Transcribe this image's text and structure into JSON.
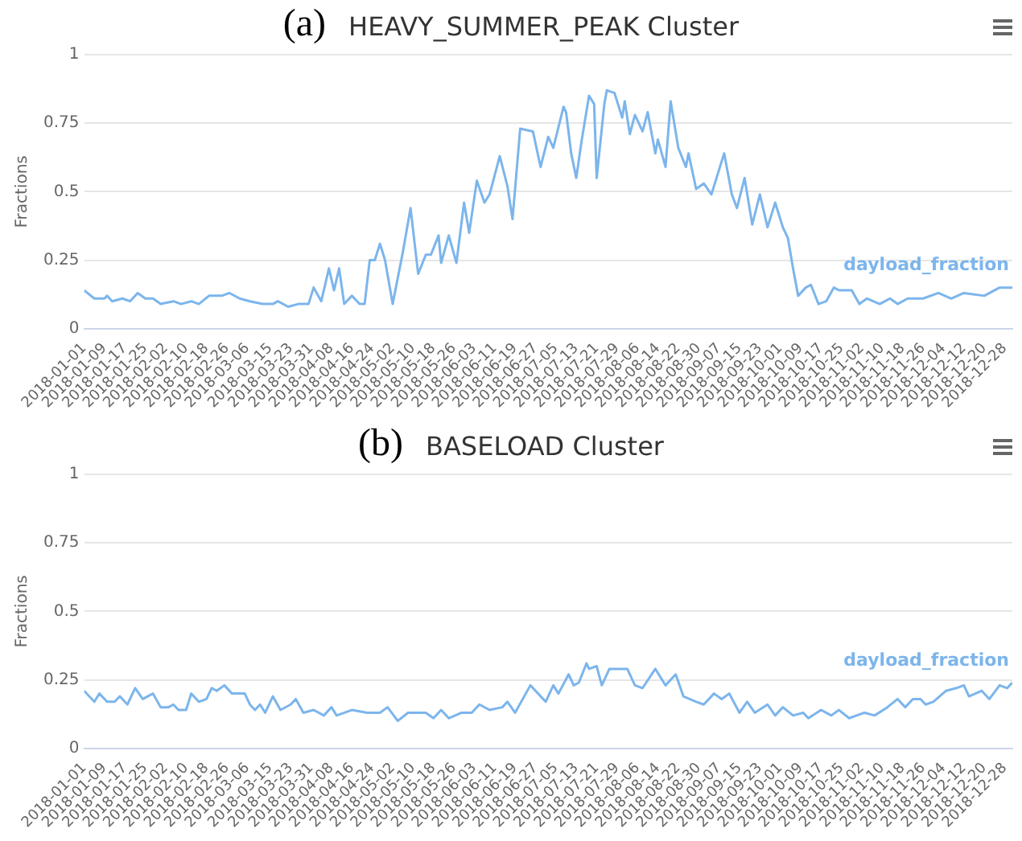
{
  "chart_data": [
    {
      "type": "line",
      "title": "(a) HEAVY_SUMMER_PEAK Cluster",
      "ylabel": "Fractions",
      "ylim": [
        0,
        1
      ],
      "yticks": [
        0,
        0.25,
        0.5,
        0.75,
        1
      ],
      "grid": "y",
      "legend": false,
      "marker": "none",
      "line_style": "solid",
      "xlim": [
        "2018-01-01",
        "2018-12-31"
      ],
      "xticks": [
        "2018-01-01",
        "2018-01-09",
        "2018-01-17",
        "2018-01-25",
        "2018-02-02",
        "2018-02-10",
        "2018-02-18",
        "2018-02-26",
        "2018-03-06",
        "2018-03-15",
        "2018-03-23",
        "2018-03-31",
        "2018-04-08",
        "2018-04-16",
        "2018-04-24",
        "2018-05-02",
        "2018-05-10",
        "2018-05-18",
        "2018-05-26",
        "2018-06-03",
        "2018-06-11",
        "2018-06-19",
        "2018-06-27",
        "2018-07-05",
        "2018-07-13",
        "2018-07-21",
        "2018-07-29",
        "2018-08-06",
        "2018-08-14",
        "2018-08-22",
        "2018-08-30",
        "2018-09-07",
        "2018-09-15",
        "2018-09-23",
        "2018-10-01",
        "2018-10-09",
        "2018-10-17",
        "2018-10-25",
        "2018-11-02",
        "2018-11-10",
        "2018-11-18",
        "2018-11-26",
        "2018-12-04",
        "2018-12-12",
        "2018-12-20",
        "2018-12-28"
      ],
      "series": [
        {
          "name": "dayload_fraction",
          "color": "#7cb5ec",
          "x": [
            "2018-01-01",
            "2018-01-05",
            "2018-01-09",
            "2018-01-10",
            "2018-01-12",
            "2018-01-16",
            "2018-01-19",
            "2018-01-22",
            "2018-01-25",
            "2018-01-28",
            "2018-01-31",
            "2018-02-05",
            "2018-02-08",
            "2018-02-12",
            "2018-02-15",
            "2018-02-19",
            "2018-02-24",
            "2018-02-27",
            "2018-03-03",
            "2018-03-07",
            "2018-03-12",
            "2018-03-16",
            "2018-03-18",
            "2018-03-22",
            "2018-03-26",
            "2018-03-30",
            "2018-04-01",
            "2018-04-04",
            "2018-04-07",
            "2018-04-09",
            "2018-04-11",
            "2018-04-13",
            "2018-04-16",
            "2018-04-19",
            "2018-04-21",
            "2018-04-23",
            "2018-04-25",
            "2018-04-27",
            "2018-04-29",
            "2018-05-02",
            "2018-05-06",
            "2018-05-09",
            "2018-05-12",
            "2018-05-15",
            "2018-05-17",
            "2018-05-20",
            "2018-05-21",
            "2018-05-24",
            "2018-05-27",
            "2018-05-30",
            "2018-06-01",
            "2018-06-04",
            "2018-06-07",
            "2018-06-09",
            "2018-06-13",
            "2018-06-16",
            "2018-06-18",
            "2018-06-21",
            "2018-06-26",
            "2018-06-29",
            "2018-07-02",
            "2018-07-04",
            "2018-07-08",
            "2018-07-09",
            "2018-07-11",
            "2018-07-13",
            "2018-07-15",
            "2018-07-18",
            "2018-07-20",
            "2018-07-21",
            "2018-07-24",
            "2018-07-25",
            "2018-07-28",
            "2018-07-31",
            "2018-08-01",
            "2018-08-03",
            "2018-08-05",
            "2018-08-08",
            "2018-08-10",
            "2018-08-13",
            "2018-08-14",
            "2018-08-17",
            "2018-08-19",
            "2018-08-22",
            "2018-08-25",
            "2018-08-26",
            "2018-08-29",
            "2018-09-01",
            "2018-09-04",
            "2018-09-09",
            "2018-09-12",
            "2018-09-14",
            "2018-09-17",
            "2018-09-20",
            "2018-09-23",
            "2018-09-26",
            "2018-09-29",
            "2018-10-02",
            "2018-10-04",
            "2018-10-06",
            "2018-10-08",
            "2018-10-11",
            "2018-10-13",
            "2018-10-16",
            "2018-10-19",
            "2018-10-22",
            "2018-10-24",
            "2018-10-29",
            "2018-11-01",
            "2018-11-04",
            "2018-11-09",
            "2018-11-13",
            "2018-11-16",
            "2018-11-20",
            "2018-11-26",
            "2018-12-02",
            "2018-12-07",
            "2018-12-12",
            "2018-12-20",
            "2018-12-26",
            "2018-12-31"
          ],
          "values": [
            0.14,
            0.11,
            0.11,
            0.12,
            0.1,
            0.11,
            0.1,
            0.13,
            0.11,
            0.11,
            0.09,
            0.1,
            0.09,
            0.1,
            0.09,
            0.12,
            0.12,
            0.13,
            0.11,
            0.1,
            0.09,
            0.09,
            0.1,
            0.08,
            0.09,
            0.09,
            0.15,
            0.1,
            0.22,
            0.14,
            0.22,
            0.09,
            0.12,
            0.09,
            0.09,
            0.25,
            0.25,
            0.31,
            0.25,
            0.09,
            0.28,
            0.44,
            0.2,
            0.27,
            0.27,
            0.34,
            0.24,
            0.34,
            0.24,
            0.46,
            0.35,
            0.54,
            0.46,
            0.49,
            0.63,
            0.52,
            0.4,
            0.73,
            0.72,
            0.59,
            0.7,
            0.66,
            0.81,
            0.79,
            0.64,
            0.55,
            0.68,
            0.85,
            0.82,
            0.55,
            0.82,
            0.87,
            0.86,
            0.77,
            0.83,
            0.71,
            0.78,
            0.72,
            0.79,
            0.64,
            0.69,
            0.59,
            0.83,
            0.66,
            0.59,
            0.64,
            0.51,
            0.53,
            0.49,
            0.64,
            0.49,
            0.44,
            0.55,
            0.38,
            0.49,
            0.37,
            0.46,
            0.37,
            0.33,
            0.22,
            0.12,
            0.15,
            0.16,
            0.09,
            0.1,
            0.15,
            0.14,
            0.14,
            0.09,
            0.11,
            0.09,
            0.11,
            0.09,
            0.11,
            0.11,
            0.13,
            0.11,
            0.13,
            0.12,
            0.15,
            0.15
          ]
        }
      ]
    },
    {
      "type": "line",
      "title": "(b) BASELOAD Cluster",
      "ylabel": "Fractions",
      "ylim": [
        0,
        1
      ],
      "yticks": [
        0,
        0.25,
        0.5,
        0.75,
        1
      ],
      "grid": "y",
      "legend": false,
      "marker": "none",
      "line_style": "solid",
      "xlim": [
        "2018-01-01",
        "2018-12-31"
      ],
      "xticks": [
        "2018-01-01",
        "2018-01-09",
        "2018-01-17",
        "2018-01-25",
        "2018-02-02",
        "2018-02-10",
        "2018-02-18",
        "2018-02-26",
        "2018-03-06",
        "2018-03-15",
        "2018-03-23",
        "2018-03-31",
        "2018-04-08",
        "2018-04-16",
        "2018-04-24",
        "2018-05-02",
        "2018-05-10",
        "2018-05-18",
        "2018-05-26",
        "2018-06-03",
        "2018-06-11",
        "2018-06-19",
        "2018-06-27",
        "2018-07-05",
        "2018-07-13",
        "2018-07-21",
        "2018-07-29",
        "2018-08-06",
        "2018-08-14",
        "2018-08-22",
        "2018-08-30",
        "2018-09-07",
        "2018-09-15",
        "2018-09-23",
        "2018-10-01",
        "2018-10-09",
        "2018-10-17",
        "2018-10-25",
        "2018-11-02",
        "2018-11-10",
        "2018-11-18",
        "2018-11-26",
        "2018-12-04",
        "2018-12-12",
        "2018-12-20",
        "2018-12-28"
      ],
      "series": [
        {
          "name": "dayload_fraction",
          "color": "#7cb5ec",
          "x": [
            "2018-01-01",
            "2018-01-05",
            "2018-01-07",
            "2018-01-10",
            "2018-01-13",
            "2018-01-15",
            "2018-01-18",
            "2018-01-21",
            "2018-01-24",
            "2018-01-28",
            "2018-01-31",
            "2018-02-03",
            "2018-02-05",
            "2018-02-07",
            "2018-02-10",
            "2018-02-12",
            "2018-02-15",
            "2018-02-18",
            "2018-02-20",
            "2018-02-22",
            "2018-02-25",
            "2018-02-28",
            "2018-03-05",
            "2018-03-07",
            "2018-03-09",
            "2018-03-11",
            "2018-03-13",
            "2018-03-16",
            "2018-03-19",
            "2018-03-23",
            "2018-03-25",
            "2018-03-28",
            "2018-04-01",
            "2018-04-05",
            "2018-04-08",
            "2018-04-10",
            "2018-04-16",
            "2018-04-22",
            "2018-04-27",
            "2018-04-30",
            "2018-05-04",
            "2018-05-08",
            "2018-05-15",
            "2018-05-18",
            "2018-05-21",
            "2018-05-24",
            "2018-05-29",
            "2018-06-02",
            "2018-06-05",
            "2018-06-09",
            "2018-06-14",
            "2018-06-16",
            "2018-06-19",
            "2018-06-25",
            "2018-07-01",
            "2018-07-04",
            "2018-07-06",
            "2018-07-10",
            "2018-07-12",
            "2018-07-14",
            "2018-07-17",
            "2018-07-18",
            "2018-07-21",
            "2018-07-23",
            "2018-07-26",
            "2018-08-02",
            "2018-08-05",
            "2018-08-08",
            "2018-08-13",
            "2018-08-17",
            "2018-08-21",
            "2018-08-24",
            "2018-08-29",
            "2018-09-01",
            "2018-09-05",
            "2018-09-08",
            "2018-09-11",
            "2018-09-15",
            "2018-09-18",
            "2018-09-21",
            "2018-09-26",
            "2018-09-29",
            "2018-10-02",
            "2018-10-06",
            "2018-10-10",
            "2018-10-12",
            "2018-10-17",
            "2018-10-21",
            "2018-10-24",
            "2018-10-28",
            "2018-11-03",
            "2018-11-07",
            "2018-11-12",
            "2018-11-16",
            "2018-11-19",
            "2018-11-22",
            "2018-11-25",
            "2018-11-27",
            "2018-11-30",
            "2018-12-05",
            "2018-12-09",
            "2018-12-12",
            "2018-12-14",
            "2018-12-19",
            "2018-12-22",
            "2018-12-26",
            "2018-12-29",
            "2018-12-31"
          ],
          "values": [
            0.21,
            0.17,
            0.2,
            0.17,
            0.17,
            0.19,
            0.16,
            0.22,
            0.18,
            0.2,
            0.15,
            0.15,
            0.16,
            0.14,
            0.14,
            0.2,
            0.17,
            0.18,
            0.22,
            0.21,
            0.23,
            0.2,
            0.2,
            0.16,
            0.14,
            0.16,
            0.13,
            0.19,
            0.14,
            0.16,
            0.18,
            0.13,
            0.14,
            0.12,
            0.15,
            0.12,
            0.14,
            0.13,
            0.13,
            0.15,
            0.1,
            0.13,
            0.13,
            0.11,
            0.14,
            0.11,
            0.13,
            0.13,
            0.16,
            0.14,
            0.15,
            0.17,
            0.13,
            0.23,
            0.17,
            0.23,
            0.2,
            0.27,
            0.23,
            0.24,
            0.31,
            0.29,
            0.3,
            0.23,
            0.29,
            0.29,
            0.23,
            0.22,
            0.29,
            0.23,
            0.27,
            0.19,
            0.17,
            0.16,
            0.2,
            0.18,
            0.2,
            0.13,
            0.17,
            0.13,
            0.16,
            0.12,
            0.15,
            0.12,
            0.13,
            0.11,
            0.14,
            0.12,
            0.14,
            0.11,
            0.13,
            0.12,
            0.15,
            0.18,
            0.15,
            0.18,
            0.18,
            0.16,
            0.17,
            0.21,
            0.22,
            0.23,
            0.19,
            0.21,
            0.18,
            0.23,
            0.22,
            0.24
          ]
        }
      ]
    }
  ]
}
